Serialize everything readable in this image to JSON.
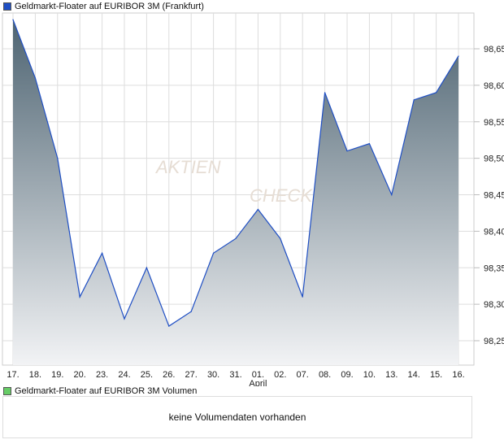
{
  "chart_data": {
    "type": "area",
    "title": "Geldmarkt-Floater auf EURIBOR 3M (Frankfurt)",
    "categories": [
      "17.",
      "18.",
      "19.",
      "20.",
      "23.",
      "24.",
      "25.",
      "26.",
      "27.",
      "30.",
      "31.",
      "01.",
      "02.",
      "07.",
      "08.",
      "09.",
      "10.",
      "13.",
      "14.",
      "15.",
      "16."
    ],
    "month_label": "April",
    "values": [
      98.69,
      98.61,
      98.5,
      98.31,
      98.37,
      98.28,
      98.35,
      98.27,
      98.29,
      98.37,
      98.39,
      98.43,
      98.39,
      98.31,
      98.59,
      98.51,
      98.52,
      98.45,
      98.58,
      98.59,
      98.64
    ],
    "yticks": [
      "98,25",
      "98,30",
      "98,35",
      "98,40",
      "98,45",
      "98,50",
      "98,55",
      "98,60",
      "98,65"
    ],
    "ylim": [
      98.22,
      98.715
    ],
    "grid": true,
    "line_color": "#1f4fc4",
    "fill_top": "#4e6472",
    "fill_bottom": "#f2f3f5",
    "legend_color": "#1f4fc4"
  },
  "watermark": "AKTIEN CHECK",
  "volume": {
    "legend": "Geldmarkt-Floater auf EURIBOR 3M Volumen",
    "legend_color": "#66cc66",
    "message": "keine Volumendaten vorhanden"
  }
}
